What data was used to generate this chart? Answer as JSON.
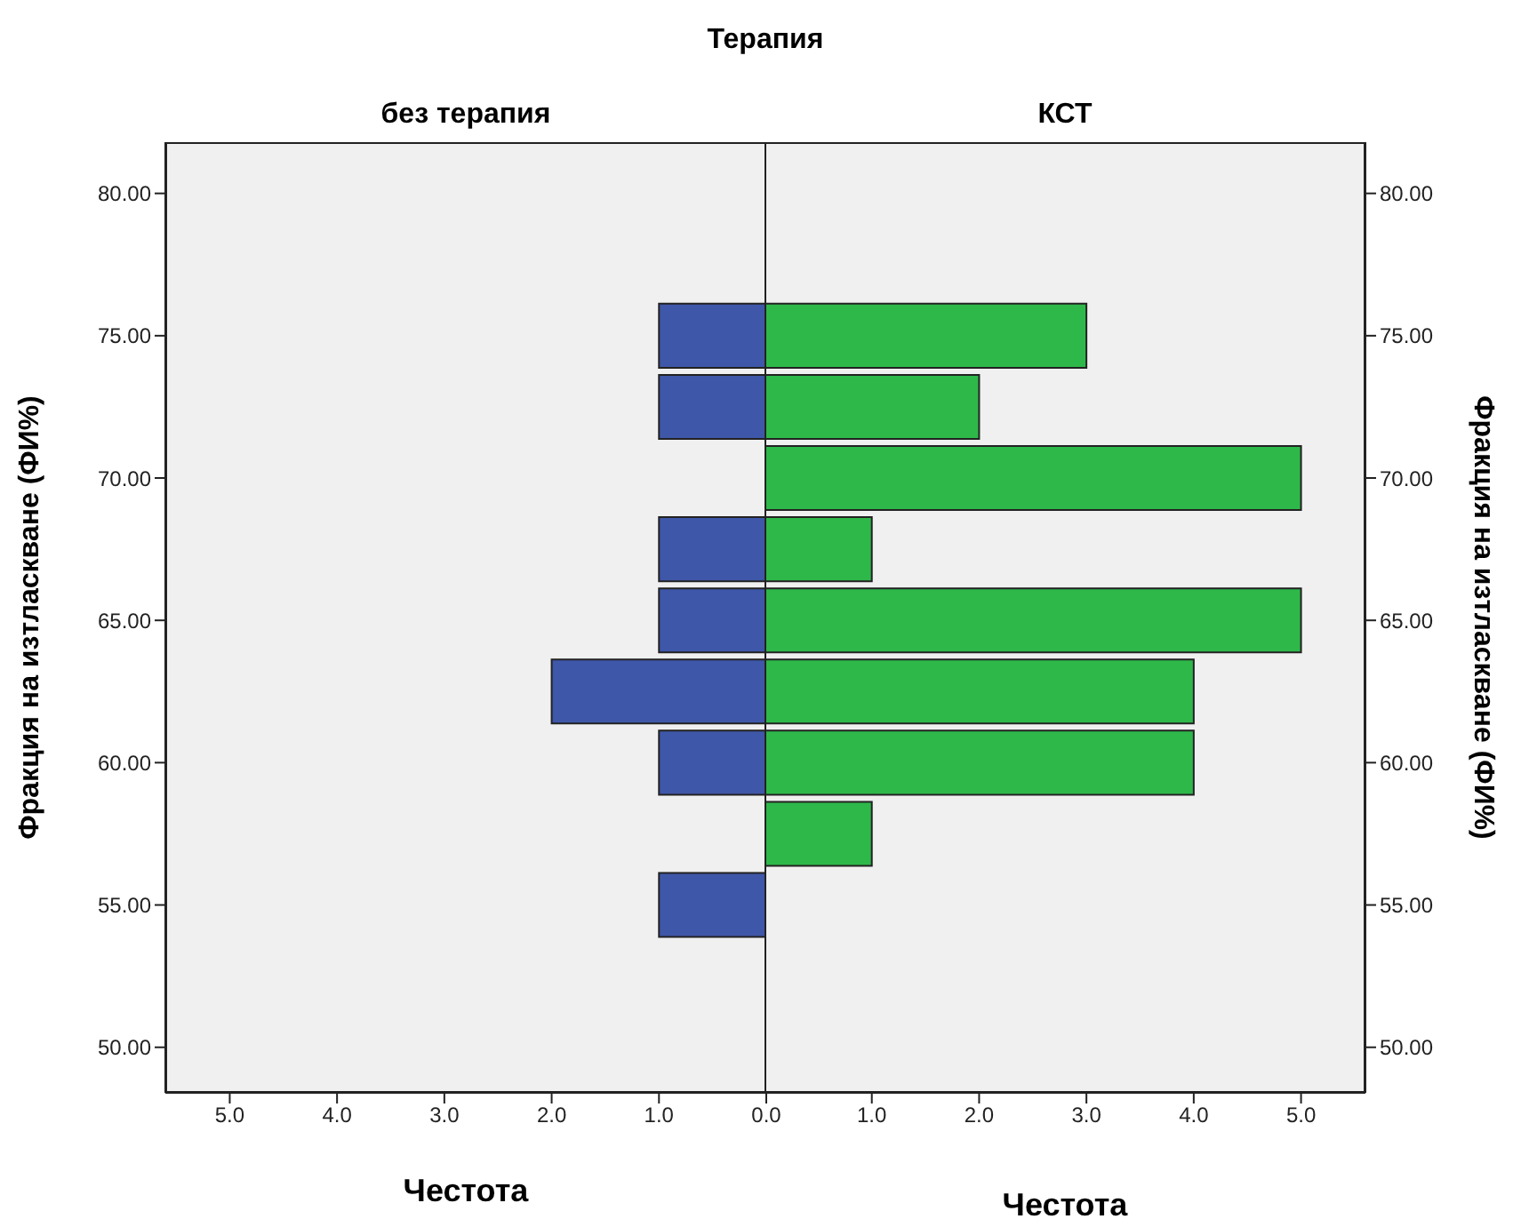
{
  "chart_data": [
    {
      "type": "histogram",
      "orientation": "horizontal",
      "annotations": [
        "Терапия"
      ],
      "title": "без терапия",
      "xlabel": "Честота",
      "ylabel": "Фракция на изтласкване (ФИ%)",
      "bins": [
        53.75,
        56.25,
        58.75,
        61.25,
        63.75,
        66.25,
        68.75,
        71.25,
        73.75,
        76.25
      ],
      "values": [
        1,
        0,
        1,
        2,
        1,
        1,
        0,
        1,
        1
      ],
      "color": "#3f57a8",
      "xlim": [
        5.6,
        0
      ],
      "xticks": [
        {
          "value": 5,
          "label": "5.0"
        },
        {
          "value": 4,
          "label": "4.0"
        },
        {
          "value": 3,
          "label": "3.0"
        },
        {
          "value": 2,
          "label": "2.0"
        },
        {
          "value": 1,
          "label": "1.0"
        },
        {
          "value": 0,
          "label": "0.0"
        }
      ],
      "ylim": [
        48.4,
        81.8
      ],
      "yticks": [
        {
          "value": 50,
          "label": "50.00"
        },
        {
          "value": 55,
          "label": "55.00"
        },
        {
          "value": 60,
          "label": "60.00"
        },
        {
          "value": 65,
          "label": "65.00"
        },
        {
          "value": 70,
          "label": "70.00"
        },
        {
          "value": 75,
          "label": "75.00"
        },
        {
          "value": 80,
          "label": "80.00"
        }
      ]
    },
    {
      "type": "histogram",
      "orientation": "horizontal",
      "title": "КСТ",
      "xlabel": "Честота",
      "ylabel": "Фракция на изтласкване (ФИ%)",
      "bins": [
        53.75,
        56.25,
        58.75,
        61.25,
        63.75,
        66.25,
        68.75,
        71.25,
        73.75,
        76.25
      ],
      "values": [
        0,
        1,
        4,
        4,
        5,
        1,
        5,
        2,
        3
      ],
      "color": "#2eb84a",
      "xlim": [
        0,
        5.6
      ],
      "xticks": [
        {
          "value": 1,
          "label": "1.0"
        },
        {
          "value": 2,
          "label": "2.0"
        },
        {
          "value": 3,
          "label": "3.0"
        },
        {
          "value": 4,
          "label": "4.0"
        },
        {
          "value": 5,
          "label": "5.0"
        }
      ],
      "ylim": [
        48.4,
        81.8
      ],
      "yticks": [
        {
          "value": 50,
          "label": "50.00"
        },
        {
          "value": 55,
          "label": "55.00"
        },
        {
          "value": 60,
          "label": "60.00"
        },
        {
          "value": 65,
          "label": "65.00"
        },
        {
          "value": 70,
          "label": "70.00"
        },
        {
          "value": 75,
          "label": "75.00"
        },
        {
          "value": 80,
          "label": "80.00"
        }
      ]
    }
  ]
}
